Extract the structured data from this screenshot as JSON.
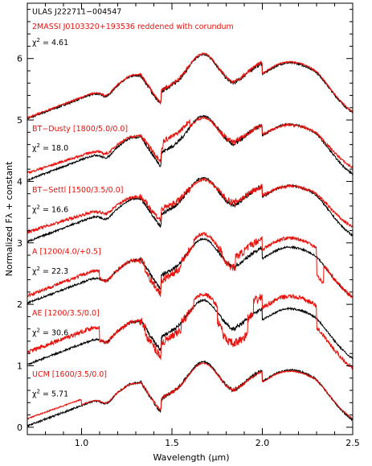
{
  "chart_data": {
    "type": "line",
    "xlabel": "Wavelength (μm)",
    "ylabel": "Normalized Fλ + constant",
    "xlim": [
      0.7,
      2.5
    ],
    "ylim": [
      -0.12,
      6.9
    ],
    "x_ticks": [
      1.0,
      1.5,
      2.0,
      2.5
    ],
    "x_tick_labels": [
      "1.0",
      "1.5",
      "2.0",
      "2.5"
    ],
    "y_ticks": [
      0,
      1,
      2,
      3,
      4,
      5,
      6
    ],
    "y_tick_labels": [
      "0",
      "1",
      "2",
      "3",
      "4",
      "5",
      "6"
    ],
    "colors": {
      "observed": "#000000",
      "model": "#e8120c",
      "axes": "#000000"
    },
    "panels": [
      {
        "offset": 5,
        "model_label": "2MASSI J0103320+193536 reddened with corundum",
        "chi2": "4.61",
        "object_label": "ULAS J222711−004547",
        "model_kind": "template"
      },
      {
        "offset": 4,
        "model_label": "BT−Dusty [1800/5.0/0.0]",
        "chi2": "18.0",
        "model_kind": "dusty"
      },
      {
        "offset": 3,
        "model_label": "BT−Settl [1500/3.5/0.0]",
        "chi2": "16.6",
        "model_kind": "settl"
      },
      {
        "offset": 2,
        "model_label": "A [1200/4.0/+0.5]",
        "chi2": "22.3",
        "model_kind": "cloudA"
      },
      {
        "offset": 1,
        "model_label": "AE [1200/3.5/0.0]",
        "chi2": "30.6",
        "model_kind": "cloudAE"
      },
      {
        "offset": 0,
        "model_label": "UCM [1600/3.5/0.0]",
        "chi2": "5.71",
        "model_kind": "ucm"
      }
    ],
    "grid": false,
    "legend": "none"
  },
  "chi2_prefix": "χ",
  "chi2_sup": "2",
  "chi2_eq": " = "
}
